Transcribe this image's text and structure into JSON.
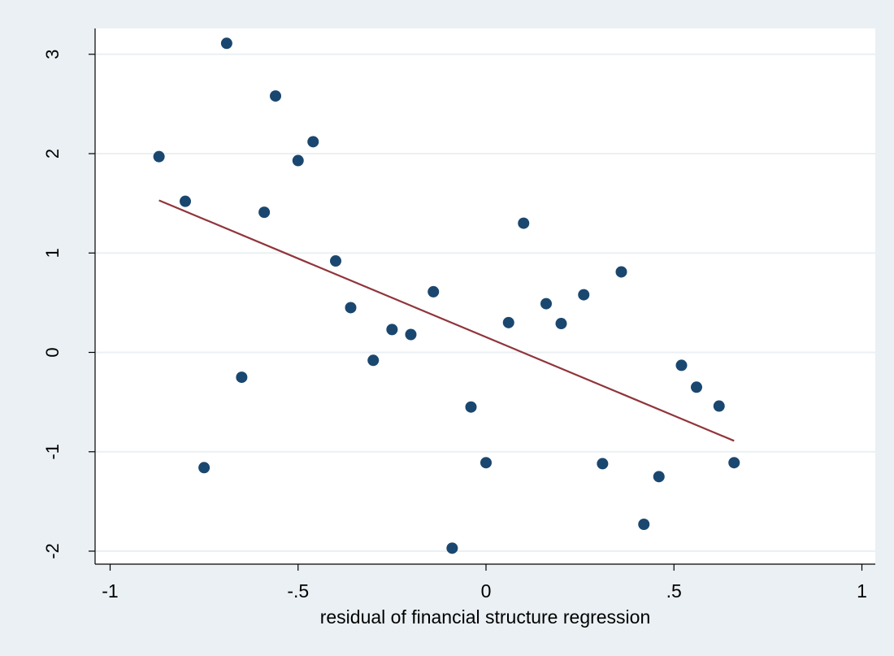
{
  "chart_data": {
    "type": "scatter",
    "title": "",
    "xlabel": "residual of financial structure regression",
    "ylabel": "",
    "xlim": [
      -1,
      1
    ],
    "ylim": [
      -2,
      3
    ],
    "xticks": [
      -1,
      -0.5,
      0,
      0.5,
      1
    ],
    "xtick_labels": [
      "-1",
      "-.5",
      "0",
      ".5",
      "1"
    ],
    "yticks": [
      -2,
      -1,
      0,
      1,
      2,
      3
    ],
    "ytick_labels": [
      "-2",
      "-1",
      "0",
      "1",
      "2",
      "3"
    ],
    "grid": "horizontal",
    "colors": {
      "background": "#eaf0f3",
      "plot_area": "#ffffff",
      "gridline": "#eaf0f3",
      "marker": "#1a476f",
      "fit_line": "#90353b"
    },
    "series": [
      {
        "type": "scatter",
        "points": [
          [
            -0.87,
            1.97
          ],
          [
            -0.8,
            1.52
          ],
          [
            -0.75,
            -1.16
          ],
          [
            -0.69,
            3.11
          ],
          [
            -0.65,
            -0.25
          ],
          [
            -0.59,
            1.41
          ],
          [
            -0.56,
            2.58
          ],
          [
            -0.5,
            1.93
          ],
          [
            -0.46,
            2.12
          ],
          [
            -0.4,
            0.92
          ],
          [
            -0.36,
            0.45
          ],
          [
            -0.3,
            -0.08
          ],
          [
            -0.25,
            0.23
          ],
          [
            -0.2,
            0.18
          ],
          [
            -0.14,
            0.61
          ],
          [
            -0.09,
            -1.97
          ],
          [
            -0.04,
            -0.55
          ],
          [
            0.0,
            -1.11
          ],
          [
            0.06,
            0.3
          ],
          [
            0.1,
            1.3
          ],
          [
            0.16,
            0.49
          ],
          [
            0.2,
            0.29
          ],
          [
            0.26,
            0.58
          ],
          [
            0.31,
            -1.12
          ],
          [
            0.36,
            0.81
          ],
          [
            0.42,
            -1.73
          ],
          [
            0.46,
            -1.25
          ],
          [
            0.52,
            -0.13
          ],
          [
            0.56,
            -0.35
          ],
          [
            0.62,
            -0.54
          ],
          [
            0.66,
            -1.11
          ]
        ]
      },
      {
        "type": "line",
        "points": [
          [
            -0.87,
            1.53
          ],
          [
            0.66,
            -0.89
          ]
        ]
      }
    ]
  }
}
